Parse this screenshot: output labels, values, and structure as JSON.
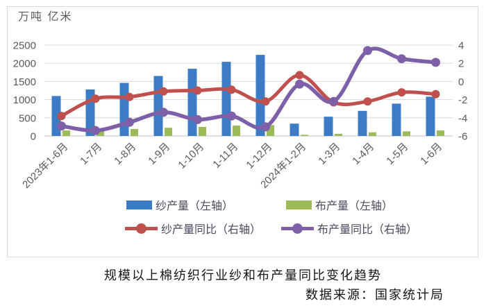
{
  "axis_unit_label": "万吨 亿米",
  "title": "规模以上棉纺织行业纱和布产量同比变化趋势",
  "source": "数据来源：国家统计局",
  "colors": {
    "yarn_bar": "#3b7cc4",
    "cloth_bar": "#9bbb59",
    "yarn_yoy_line": "#c0504d",
    "cloth_yoy_line": "#7d60a8",
    "gridline": "#d9d9d9",
    "axis_line": "#bfbfbf",
    "axis_text": "#595959"
  },
  "chart_data": {
    "type": "bar",
    "subtype": "combo-bar-line-dual-axis",
    "title": "规模以上棉纺织行业纱和布产量同比变化趋势",
    "categories": [
      "2023年1-6月",
      "1-7月",
      "1-8月",
      "1-9月",
      "1-10月",
      "1-11月",
      "1-12月",
      "2024年1-2月",
      "1-3月",
      "1-4月",
      "1-5月",
      "1-6月"
    ],
    "series": [
      {
        "name": "纱产量（左轴）",
        "type": "bar",
        "axis": "left",
        "color": "#3b7cc4",
        "values": [
          1100,
          1280,
          1460,
          1650,
          1850,
          2040,
          2230,
          340,
          530,
          690,
          890,
          1080
        ]
      },
      {
        "name": "布产量（左轴）",
        "type": "bar",
        "axis": "left",
        "color": "#9bbb59",
        "values": [
          150,
          165,
          190,
          225,
          250,
          285,
          300,
          30,
          60,
          100,
          125,
          150
        ]
      },
      {
        "name": "纱产量同比（右轴）",
        "type": "line",
        "axis": "right",
        "color": "#c0504d",
        "values": [
          -3.8,
          -1.9,
          -1.7,
          -1.1,
          -1.0,
          -0.9,
          -2.2,
          0.7,
          -2.3,
          -2.2,
          -1.2,
          -1.4
        ]
      },
      {
        "name": "布产量同比（右轴）",
        "type": "line",
        "axis": "right",
        "color": "#7d60a8",
        "values": [
          -4.9,
          -5.4,
          -4.5,
          -3.4,
          -4.2,
          -3.8,
          -5.0,
          -0.3,
          -2.2,
          3.4,
          2.5,
          2.1
        ]
      }
    ],
    "left_axis": {
      "label": "万吨 亿米",
      "ticks": [
        0,
        500,
        1000,
        1500,
        2000,
        2500
      ],
      "range": [
        0,
        2500
      ]
    },
    "right_axis": {
      "ticks": [
        -6,
        -4,
        -2,
        0,
        2,
        4
      ],
      "range": [
        -6,
        4
      ]
    },
    "grid": true,
    "legend_position": "bottom",
    "x_label_rotation": -45
  }
}
